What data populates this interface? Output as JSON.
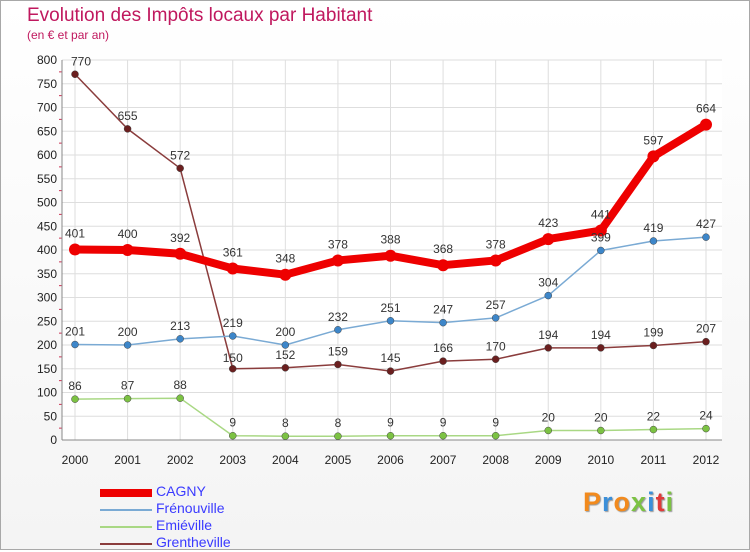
{
  "title": "Evolution des Impôts locaux par Habitant",
  "subtitle": "(en € et par an)",
  "logo": {
    "text": "Proxiti",
    "colors": [
      "#f28a1d",
      "#3b8fd9",
      "#f28a1d",
      "#7cc243",
      "#3b8fd9",
      "#e03a3a",
      "#7cc243"
    ]
  },
  "chart_data": {
    "type": "line",
    "title": "Evolution des Impôts locaux par Habitant",
    "subtitle": "(en € et par an)",
    "x": [
      2000,
      2001,
      2002,
      2003,
      2004,
      2005,
      2006,
      2007,
      2008,
      2009,
      2010,
      2011,
      2012
    ],
    "ylim": [
      0,
      800
    ],
    "yticks": [
      0,
      50,
      100,
      150,
      200,
      250,
      300,
      350,
      400,
      450,
      500,
      550,
      600,
      650,
      700,
      750,
      800
    ],
    "grid": true,
    "legend_position": "bottom-left",
    "series": [
      {
        "name": "CAGNY",
        "color": "#ee0000",
        "dot": "#ee0000",
        "width": 8,
        "marker": 6,
        "values": [
          401,
          400,
          392,
          361,
          348,
          378,
          388,
          368,
          378,
          423,
          441,
          597,
          664
        ]
      },
      {
        "name": "Frénouville",
        "color": "#7aaad4",
        "dot": "#3d86c9",
        "width": 1.5,
        "marker": 3.5,
        "values": [
          201,
          200,
          213,
          219,
          200,
          232,
          251,
          247,
          257,
          304,
          399,
          419,
          427
        ]
      },
      {
        "name": "Emiéville",
        "color": "#a9d884",
        "dot": "#7cc243",
        "width": 1.5,
        "marker": 3.5,
        "values": [
          86,
          87,
          88,
          9,
          8,
          8,
          9,
          9,
          9,
          20,
          20,
          22,
          24
        ]
      },
      {
        "name": "Grentheville",
        "color": "#8a3c3c",
        "dot": "#6b1f1f",
        "width": 1.5,
        "marker": 3.5,
        "values": [
          770,
          655,
          572,
          150,
          152,
          159,
          145,
          166,
          170,
          194,
          194,
          199,
          207
        ]
      }
    ]
  }
}
